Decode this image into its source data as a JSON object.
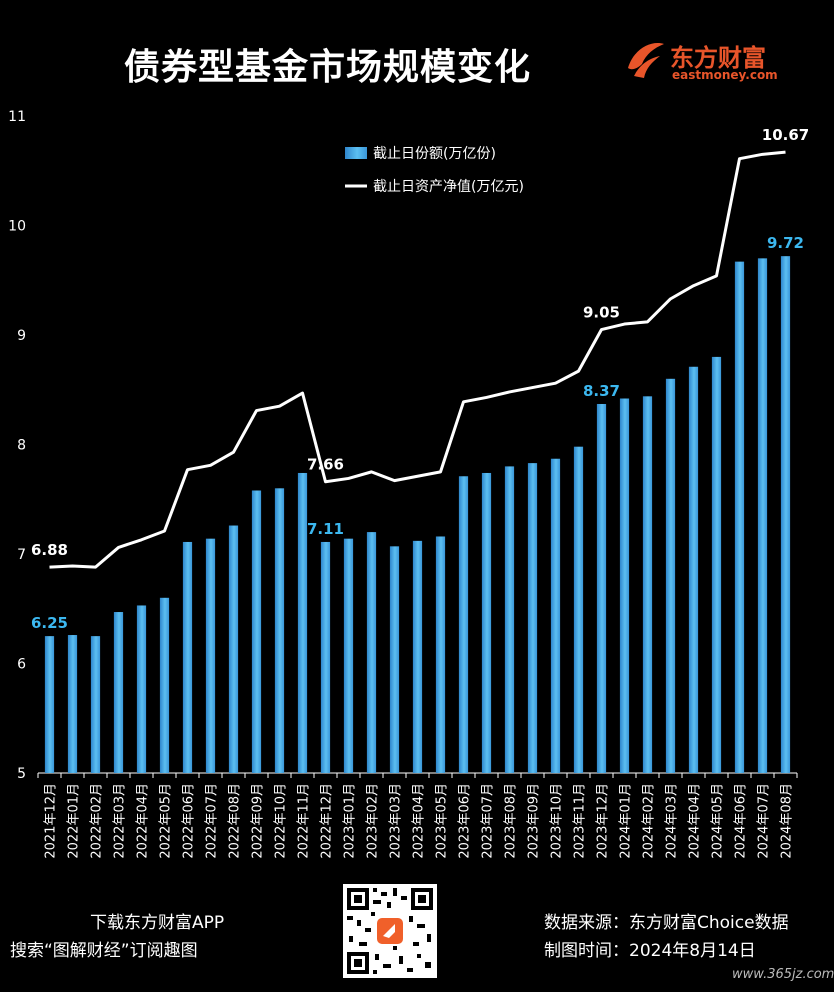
{
  "title": "债券型基金市场规模变化",
  "brand": {
    "name": "东方财富",
    "sub": "eastmoney.com",
    "color": "#e8552a"
  },
  "footer": {
    "left_line1": "下载东方财富APP",
    "left_line2": "搜索“图解财经”订阅趣图",
    "right_line1": "数据来源：东方财富Choice数据",
    "right_line2": "制图时间：2024年8月14日"
  },
  "watermark": "www.365jz.com",
  "chart_data": {
    "type": "bar",
    "categories": [
      "2021年12月",
      "2022年01月",
      "2022年02月",
      "2022年03月",
      "2022年04月",
      "2022年05月",
      "2022年06月",
      "2022年07月",
      "2022年08月",
      "2022年09月",
      "2022年10月",
      "2022年11月",
      "2022年12月",
      "2023年01月",
      "2023年02月",
      "2023年03月",
      "2023年04月",
      "2023年05月",
      "2023年06月",
      "2023年07月",
      "2023年08月",
      "2023年09月",
      "2023年10月",
      "2023年11月",
      "2023年12月",
      "2024年01月",
      "2024年02月",
      "2024年03月",
      "2024年04月",
      "2024年05月",
      "2024年06月",
      "2024年07月",
      "2024年08月"
    ],
    "series": [
      {
        "name": "截止日份额(万亿份)",
        "kind": "bar",
        "color": "#4aa8e8",
        "values": [
          6.25,
          6.26,
          6.25,
          6.47,
          6.53,
          6.6,
          7.11,
          7.14,
          7.26,
          7.58,
          7.6,
          7.74,
          7.11,
          7.14,
          7.2,
          7.07,
          7.12,
          7.16,
          7.71,
          7.74,
          7.8,
          7.83,
          7.87,
          7.98,
          8.37,
          8.42,
          8.44,
          8.6,
          8.71,
          8.8,
          9.67,
          9.7,
          9.72
        ]
      },
      {
        "name": "截止日资产净值(万亿元)",
        "kind": "line",
        "color": "#ffffff",
        "values": [
          6.88,
          6.89,
          6.88,
          7.06,
          7.13,
          7.21,
          7.77,
          7.81,
          7.93,
          8.31,
          8.35,
          8.47,
          7.66,
          7.69,
          7.75,
          7.67,
          7.71,
          7.75,
          8.39,
          8.43,
          8.48,
          8.52,
          8.56,
          8.67,
          9.05,
          9.1,
          9.12,
          9.33,
          9.45,
          9.54,
          10.61,
          10.65,
          10.67
        ]
      }
    ],
    "labels": [
      {
        "series": 0,
        "index": 0,
        "text": "6.25"
      },
      {
        "series": 0,
        "index": 12,
        "text": "7.11"
      },
      {
        "series": 0,
        "index": 24,
        "text": "8.37"
      },
      {
        "series": 0,
        "index": 32,
        "text": "9.72"
      },
      {
        "series": 1,
        "index": 0,
        "text": "6.88"
      },
      {
        "series": 1,
        "index": 12,
        "text": "7.66"
      },
      {
        "series": 1,
        "index": 24,
        "text": "9.05"
      },
      {
        "series": 1,
        "index": 32,
        "text": "10.67"
      }
    ],
    "label_color_bar": "#3cb8f0",
    "ylim": [
      5,
      11
    ],
    "yticks": [
      5,
      6,
      7,
      8,
      9,
      10,
      11
    ],
    "legend_position": "top-center",
    "grid": false
  }
}
